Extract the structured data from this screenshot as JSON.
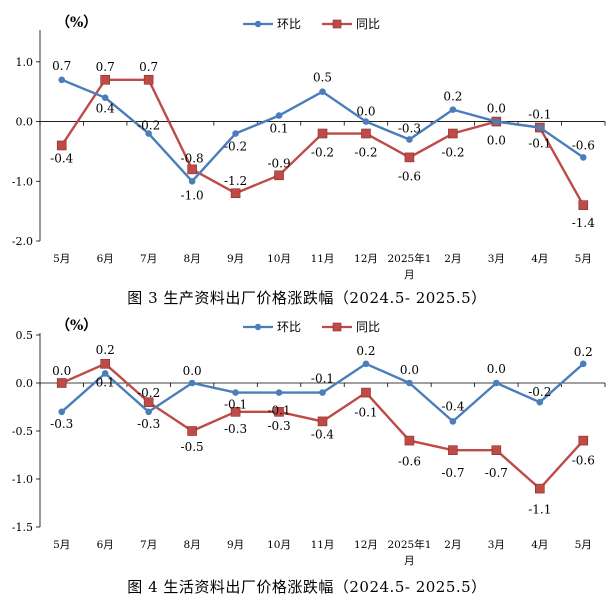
{
  "colors": {
    "mom": "#4a7ebb",
    "yoy": "#be4b48",
    "axis": "#000000"
  },
  "chart_data": [
    {
      "type": "line",
      "unit": "（%）",
      "caption": "图 3 生产资料出厂价格涨跌幅（2024.5- 2025.5）",
      "categories": [
        "5月",
        "6月",
        "7月",
        "8月",
        "9月",
        "10月",
        "11月",
        "12月",
        "2025年1月",
        "2月",
        "3月",
        "4月",
        "5月"
      ],
      "ylim": [
        -2.0,
        1.5
      ],
      "yticks": [
        "1.0",
        "0.0",
        "-1.0",
        "-2.0"
      ],
      "legend_position": "top-center",
      "series": [
        {
          "name": "环比",
          "color": "#4a7ebb",
          "marker": "circle",
          "values": [
            0.7,
            0.4,
            -0.2,
            -1.0,
            -0.2,
            0.1,
            0.5,
            0.0,
            -0.3,
            0.2,
            0.0,
            -0.1,
            -0.6
          ],
          "labels": [
            "0.7",
            "0.4",
            "-0.2",
            "-1.0",
            "-0.2",
            "0.1",
            "0.5",
            "0.0",
            "-0.3",
            "0.2",
            "0.0",
            "-0.1",
            "-0.6"
          ]
        },
        {
          "name": "同比",
          "color": "#be4b48",
          "marker": "square",
          "values": [
            -0.4,
            0.7,
            0.7,
            -0.8,
            -1.2,
            -0.9,
            -0.2,
            -0.2,
            -0.6,
            -0.2,
            0.0,
            -0.1,
            -1.4
          ],
          "labels": [
            "-0.4",
            "0.7",
            "0.7",
            "-0.8",
            "-1.2",
            "-0.9",
            "-0.2",
            "-0.2",
            "-0.6",
            "-0.2",
            "0.0",
            "-0.1",
            "-1.4"
          ]
        }
      ]
    },
    {
      "type": "line",
      "unit": "（%）",
      "caption": "图 4 生活资料出厂价格涨跌幅（2024.5- 2025.5）",
      "categories": [
        "5月",
        "6月",
        "7月",
        "8月",
        "9月",
        "10月",
        "11月",
        "12月",
        "2025年1月",
        "2月",
        "3月",
        "4月",
        "5月"
      ],
      "ylim": [
        -1.5,
        0.5
      ],
      "yticks": [
        "0.5",
        "0.0",
        "-0.5",
        "-1.0",
        "-1.5"
      ],
      "legend_position": "top-center",
      "series": [
        {
          "name": "环比",
          "color": "#4a7ebb",
          "marker": "circle",
          "values": [
            -0.3,
            0.1,
            -0.3,
            0.0,
            -0.1,
            -0.1,
            -0.1,
            0.2,
            0.0,
            -0.4,
            0.0,
            -0.2,
            0.2
          ],
          "labels": [
            "-0.3",
            "0.1",
            "-0.3",
            "0.0",
            "-0.1",
            "-0.1",
            "-0.1",
            "0.2",
            "0.0",
            "-0.4",
            "0.0",
            "-0.2",
            "0.2"
          ]
        },
        {
          "name": "同比",
          "color": "#be4b48",
          "marker": "square",
          "values": [
            0.0,
            0.2,
            -0.2,
            -0.5,
            -0.3,
            -0.3,
            -0.4,
            -0.1,
            -0.6,
            -0.7,
            -0.7,
            -1.1,
            -0.6
          ],
          "labels": [
            "0.0",
            "0.2",
            "-0.2",
            "-0.5",
            "-0.3",
            "-0.3",
            "-0.4",
            "-0.1",
            "-0.6",
            "-0.7",
            "-0.7",
            "-1.1",
            "-0.6"
          ]
        }
      ]
    }
  ]
}
